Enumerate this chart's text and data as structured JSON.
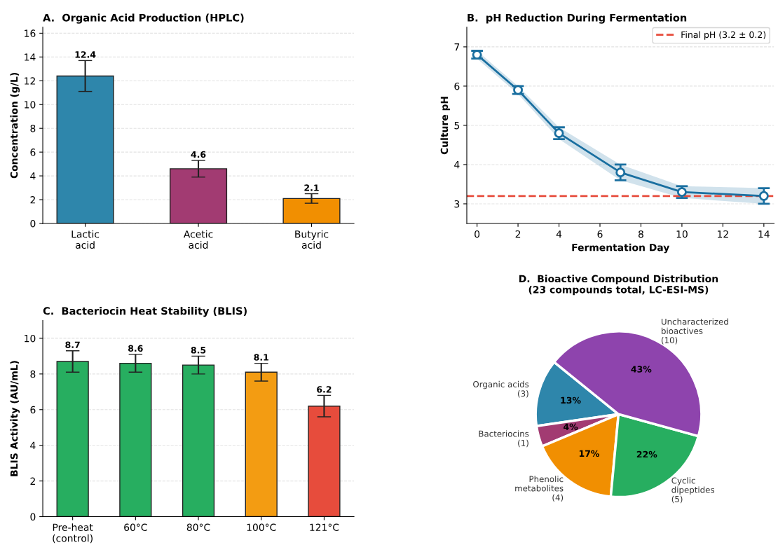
{
  "chart_data": [
    {
      "type": "bar",
      "title": "A.  Organic Acid Production (HPLC)",
      "ylabel": "Concentration (g/L)",
      "categories": [
        "Lactic\nacid",
        "Acetic\nacid",
        "Butyric\nacid"
      ],
      "values": [
        12.4,
        4.6,
        2.1
      ],
      "errors": [
        1.3,
        0.7,
        0.4
      ],
      "colors": [
        "#2e86ab",
        "#a23b72",
        "#f18f01"
      ],
      "ylim": [
        0,
        16.5
      ],
      "yticks": [
        0,
        2,
        4,
        6,
        8,
        10,
        12,
        14,
        16
      ],
      "grid": "y",
      "data_labels": true
    },
    {
      "type": "line",
      "title": "B.  pH Reduction During Fermentation",
      "xlabel": "Fermentation Day",
      "ylabel": "Culture pH",
      "series": [
        {
          "color": "#1a6fa0",
          "x": [
            0,
            2,
            4,
            7,
            10,
            14
          ],
          "values": [
            6.8,
            5.9,
            4.8,
            3.8,
            3.3,
            3.2
          ],
          "errors": [
            0.1,
            0.1,
            0.15,
            0.2,
            0.15,
            0.2
          ],
          "lower": [
            6.7,
            5.8,
            4.65,
            3.6,
            3.15,
            3.0
          ],
          "upper": [
            6.9,
            6.0,
            4.95,
            4.0,
            3.45,
            3.4
          ]
        }
      ],
      "xlim": [
        -0.5,
        14.5
      ],
      "xticks": [
        0,
        2,
        4,
        6,
        8,
        10,
        12,
        14
      ],
      "ylim": [
        2.5,
        7.5
      ],
      "yticks": [
        3,
        4,
        5,
        6,
        7
      ],
      "marker": "circle",
      "line_style": "solid",
      "grid": "y",
      "legend": "top right",
      "ref_lines": [
        {
          "axis": "y",
          "value": 3.2,
          "label": "Final pH (3.2 ± 0.2)",
          "color": "#e74c3c",
          "line_style": "dashed"
        }
      ]
    },
    {
      "type": "bar",
      "title": "C.  Bacteriocin Heat Stability (BLIS)",
      "ylabel": "BLIS Activity (AU/mL)",
      "categories": [
        "Pre-heat\n(control)",
        "60°C",
        "80°C",
        "100°C",
        "121°C"
      ],
      "values": [
        8.7,
        8.6,
        8.5,
        8.1,
        6.2
      ],
      "errors": [
        0.6,
        0.5,
        0.5,
        0.5,
        0.6
      ],
      "colors": [
        "#27ae60",
        "#27ae60",
        "#27ae60",
        "#f39c12",
        "#e74c3c"
      ],
      "ylim": [
        0,
        11
      ],
      "yticks": [
        0,
        2,
        4,
        6,
        8,
        10
      ],
      "grid": "y",
      "data_labels": true
    },
    {
      "type": "pie",
      "title": "D.  Bioactive Compound Distribution\n(23 compounds total, LC-ESI-MS)",
      "categories": [
        "Organic acids\n(3)",
        "Bacteriocins\n(1)",
        "Phenolic\nmetabolites\n(4)",
        "Cyclic\ndipeptides\n(5)",
        "Uncharacterized\nbioactives\n(10)"
      ],
      "values": [
        13,
        4,
        17,
        22,
        43
      ],
      "value_labels": [
        "13%",
        "4%",
        "17%",
        "22%",
        "43%"
      ],
      "colors": [
        "#2e86ab",
        "#a23b72",
        "#f18f01",
        "#27ae60",
        "#8e44ad"
      ]
    }
  ]
}
